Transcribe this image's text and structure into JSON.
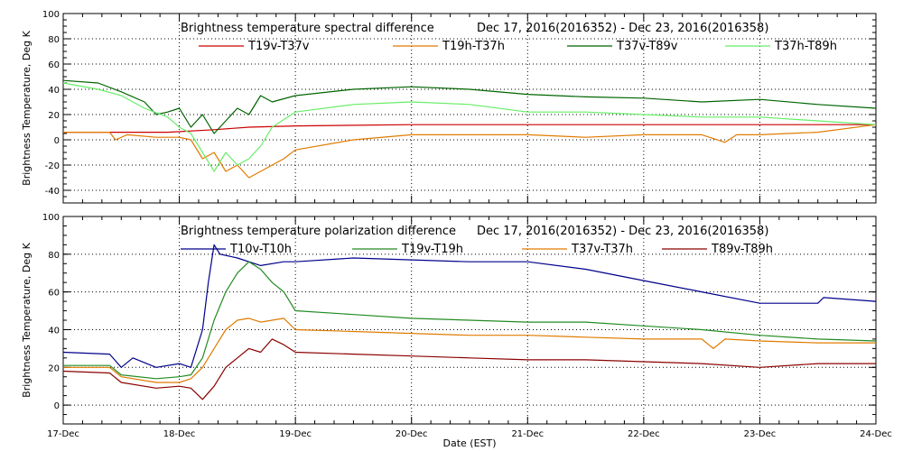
{
  "xlabel": "Date (EST)",
  "x_ticks": [
    "17-Dec",
    "18-Dec",
    "19-Dec",
    "20-Dec",
    "21-Dec",
    "22-Dec",
    "23-Dec",
    "24-Dec"
  ],
  "chart_data": [
    {
      "type": "line",
      "title_left": "Brightness temperature spectral difference",
      "title_right": "Dec 17, 2016(2016352) - Dec 23, 2016(2016358)",
      "xlabel": "Date (EST)",
      "ylabel": "Brightness Temperature, Deg K",
      "xlim": [
        0,
        7
      ],
      "ylim": [
        -50,
        100
      ],
      "yticks": [
        -40,
        -20,
        0,
        20,
        40,
        60,
        80,
        100
      ],
      "x_categories": [
        "17-Dec",
        "18-Dec",
        "19-Dec",
        "20-Dec",
        "21-Dec",
        "22-Dec",
        "23-Dec",
        "24-Dec"
      ],
      "grid": true,
      "series": [
        {
          "name": "T19v-T37v",
          "color": "#cc0000",
          "x": [
            0,
            0.5,
            0.9,
            1.3,
            1.6,
            2.0,
            3.0,
            4.0,
            5.0,
            6.0,
            7.0
          ],
          "y": [
            6,
            6,
            6,
            8,
            10,
            11,
            12,
            12,
            12,
            12,
            12
          ]
        },
        {
          "name": "T19h-T37h",
          "color": "#e07b00",
          "x": [
            0,
            0.4,
            0.45,
            0.55,
            0.8,
            1.0,
            1.1,
            1.2,
            1.3,
            1.4,
            1.5,
            1.6,
            1.7,
            1.8,
            1.9,
            2.0,
            2.5,
            3.0,
            4.0,
            4.5,
            5.0,
            5.5,
            5.7,
            5.8,
            6.0,
            6.5,
            7.0
          ],
          "y": [
            6,
            6,
            0,
            4,
            2,
            2,
            0,
            -15,
            -10,
            -25,
            -20,
            -30,
            -25,
            -20,
            -15,
            -8,
            0,
            4,
            4,
            2,
            4,
            4,
            -2,
            4,
            4,
            6,
            12
          ]
        },
        {
          "name": "T37v-T89v",
          "color": "#006400",
          "x": [
            0,
            0.3,
            0.5,
            0.7,
            0.8,
            0.9,
            1.0,
            1.1,
            1.2,
            1.3,
            1.4,
            1.5,
            1.6,
            1.7,
            1.8,
            2.0,
            2.5,
            3.0,
            3.5,
            4.0,
            4.5,
            5.0,
            5.5,
            6.0,
            6.5,
            7.0
          ],
          "y": [
            47,
            45,
            38,
            30,
            20,
            22,
            25,
            10,
            20,
            5,
            15,
            25,
            20,
            35,
            30,
            35,
            40,
            42,
            40,
            36,
            34,
            33,
            30,
            32,
            28,
            25
          ]
        },
        {
          "name": "T37h-T89h",
          "color": "#66ee66",
          "x": [
            0,
            0.3,
            0.5,
            0.7,
            0.9,
            1.0,
            1.1,
            1.2,
            1.3,
            1.4,
            1.5,
            1.6,
            1.7,
            1.8,
            2.0,
            2.5,
            3.0,
            3.5,
            4.0,
            4.5,
            5.0,
            5.5,
            6.0,
            6.5,
            7.0
          ],
          "y": [
            45,
            40,
            35,
            25,
            18,
            10,
            5,
            -10,
            -25,
            -10,
            -20,
            -15,
            -5,
            10,
            22,
            28,
            30,
            28,
            22,
            22,
            20,
            18,
            18,
            15,
            12
          ]
        }
      ]
    },
    {
      "type": "line",
      "title_left": "Brightness temperature polarization difference",
      "title_right": "Dec 17, 2016(2016352) - Dec 23, 2016(2016358)",
      "xlabel": "Date (EST)",
      "ylabel": "Brightness Temperature, Deg K",
      "xlim": [
        0,
        7
      ],
      "ylim": [
        -10,
        100
      ],
      "yticks": [
        0,
        20,
        40,
        60,
        80,
        100
      ],
      "x_categories": [
        "17-Dec",
        "18-Dec",
        "19-Dec",
        "20-Dec",
        "21-Dec",
        "22-Dec",
        "23-Dec",
        "24-Dec"
      ],
      "grid": true,
      "series": [
        {
          "name": "T10v-T10h",
          "color": "#00008b",
          "x": [
            0,
            0.4,
            0.5,
            0.6,
            0.8,
            1.0,
            1.1,
            1.2,
            1.25,
            1.3,
            1.35,
            1.5,
            1.7,
            1.9,
            2.0,
            2.5,
            3.0,
            3.5,
            4.0,
            4.5,
            5.0,
            5.5,
            6.0,
            6.5,
            6.55,
            7.0
          ],
          "y": [
            28,
            27,
            20,
            25,
            20,
            22,
            20,
            40,
            65,
            85,
            80,
            78,
            74,
            76,
            76,
            78,
            77,
            76,
            76,
            72,
            66,
            60,
            54,
            54,
            57,
            55
          ]
        },
        {
          "name": "T19v-T19h",
          "color": "#228b22",
          "x": [
            0,
            0.4,
            0.5,
            0.8,
            1.0,
            1.1,
            1.2,
            1.3,
            1.4,
            1.5,
            1.6,
            1.7,
            1.8,
            1.9,
            2.0,
            2.5,
            3.0,
            3.5,
            4.0,
            4.5,
            5.0,
            5.5,
            6.0,
            6.5,
            7.0
          ],
          "y": [
            21,
            21,
            16,
            14,
            15,
            16,
            25,
            45,
            60,
            70,
            76,
            72,
            65,
            60,
            50,
            48,
            46,
            45,
            44,
            44,
            42,
            40,
            37,
            35,
            34
          ]
        },
        {
          "name": "T37v-T37h",
          "color": "#e07b00",
          "x": [
            0,
            0.4,
            0.5,
            0.8,
            1.0,
            1.1,
            1.2,
            1.3,
            1.4,
            1.5,
            1.6,
            1.7,
            1.8,
            1.9,
            2.0,
            2.5,
            3.0,
            3.5,
            4.0,
            4.5,
            5.0,
            5.5,
            5.6,
            5.7,
            6.0,
            6.5,
            7.0
          ],
          "y": [
            20,
            20,
            15,
            12,
            12,
            14,
            20,
            30,
            40,
            45,
            46,
            44,
            45,
            46,
            40,
            39,
            38,
            37,
            37,
            36,
            35,
            35,
            30,
            35,
            34,
            33,
            33
          ]
        },
        {
          "name": "T89v-T89h",
          "color": "#8b0000",
          "x": [
            0,
            0.4,
            0.5,
            0.8,
            1.0,
            1.1,
            1.2,
            1.3,
            1.4,
            1.5,
            1.6,
            1.7,
            1.8,
            1.9,
            2.0,
            2.5,
            3.0,
            3.5,
            4.0,
            4.5,
            5.0,
            5.5,
            6.0,
            6.5,
            7.0
          ],
          "y": [
            18,
            17,
            12,
            9,
            10,
            9,
            3,
            10,
            20,
            25,
            30,
            28,
            35,
            32,
            28,
            27,
            26,
            25,
            24,
            24,
            23,
            22,
            20,
            22,
            22
          ]
        }
      ]
    }
  ]
}
